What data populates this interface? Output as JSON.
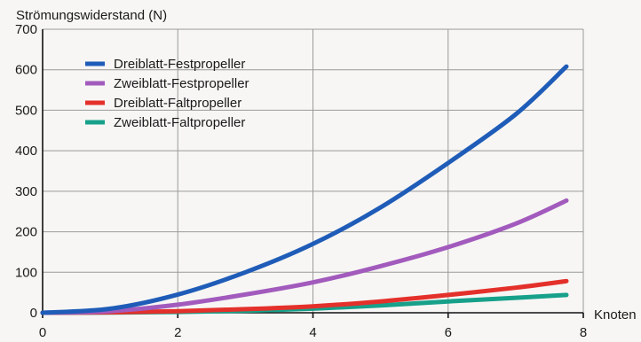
{
  "chart_data": {
    "type": "line",
    "title": "",
    "ylabel": "Strömungswiderstand (N)",
    "xlabel": "Knoten",
    "xlim": [
      0,
      8
    ],
    "ylim": [
      0,
      700
    ],
    "x_ticks": [
      0,
      2,
      4,
      6,
      8
    ],
    "y_ticks": [
      0,
      100,
      200,
      300,
      400,
      500,
      600,
      700
    ],
    "grid": true,
    "legend_position": "top-left",
    "series": [
      {
        "name": "Dreiblatt-Festpropeller",
        "color": "#1f5cb8",
        "x": [
          0,
          1,
          2,
          3,
          4,
          5,
          6,
          7,
          7.75
        ],
        "y": [
          0,
          10,
          45,
          100,
          170,
          260,
          370,
          490,
          608
        ]
      },
      {
        "name": "Zweiblatt-Festpropeller",
        "color": "#a25bbd",
        "x": [
          0,
          1,
          2,
          3,
          4,
          5,
          6,
          7,
          7.75
        ],
        "y": [
          0,
          4,
          20,
          45,
          75,
          115,
          162,
          220,
          277
        ]
      },
      {
        "name": "Dreiblatt-Faltpropeller",
        "color": "#e4302b",
        "x": [
          0,
          1,
          2,
          3,
          4,
          5,
          6,
          7,
          7.75
        ],
        "y": [
          0,
          1,
          4,
          9,
          16,
          28,
          44,
          62,
          78
        ]
      },
      {
        "name": "Zweiblatt-Faltpropeller",
        "color": "#17a08a",
        "x": [
          0,
          1,
          2,
          3,
          4,
          5,
          6,
          7,
          7.75
        ],
        "y": [
          0,
          0.5,
          2,
          5,
          10,
          18,
          28,
          37,
          44
        ]
      }
    ]
  }
}
